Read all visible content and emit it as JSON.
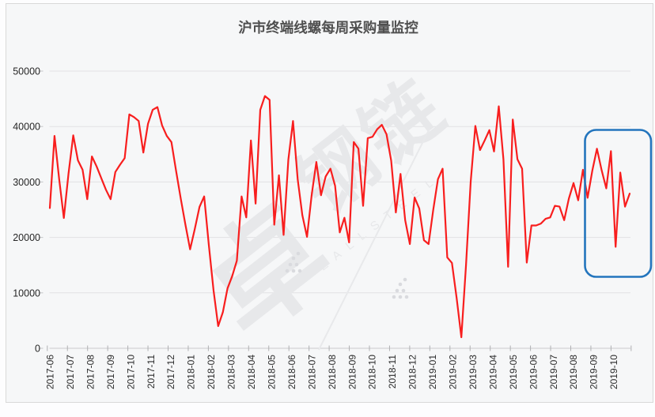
{
  "page": {
    "background": "#fdfdfe",
    "panel_background": "#f6f7f8",
    "panel_border": "#d9d9d9"
  },
  "chart_data": {
    "type": "line",
    "title": "沪市终端线螺每周采购量监控",
    "xlabel": "",
    "ylabel": "",
    "x_unit": "week",
    "start_month": "2017-06",
    "end_month": "2019-10",
    "categories_months": [
      "2017-06",
      "2017-07",
      "2017-08",
      "2017-09",
      "2017-10",
      "2017-11",
      "2017-12",
      "2018-01",
      "2018-02",
      "2018-03",
      "2018-04",
      "2018-05",
      "2018-06",
      "2018-07",
      "2018-08",
      "2018-09",
      "2018-10",
      "2018-11",
      "2018-12",
      "2019-01",
      "2019-02",
      "2019-03",
      "2019-04",
      "2019-05",
      "2019-06",
      "2019-07",
      "2019-08",
      "2019-09",
      "2019-10"
    ],
    "ylim": [
      0,
      50000
    ],
    "y_ticks": [
      0,
      10000,
      20000,
      30000,
      40000,
      50000
    ],
    "grid": "horizontal",
    "legend": "none",
    "series": [
      {
        "name": "每周采购量",
        "color": "#f81e1e",
        "values": [
          25300,
          38300,
          30500,
          23500,
          31500,
          38400,
          33900,
          32200,
          26900,
          34600,
          32800,
          30700,
          28600,
          26900,
          31800,
          33100,
          34300,
          42200,
          41700,
          41000,
          35300,
          40500,
          43000,
          43500,
          40200,
          38300,
          37200,
          32000,
          27000,
          22300,
          17850,
          21500,
          25500,
          27400,
          18600,
          10500,
          4000,
          6500,
          10800,
          13000,
          15800,
          27400,
          23600,
          37500,
          26100,
          43000,
          45500,
          44800,
          22300,
          31200,
          20450,
          34000,
          41000,
          30500,
          24000,
          20100,
          27650,
          33600,
          27600,
          31000,
          32400,
          29300,
          20900,
          23550,
          19100,
          37200,
          36000,
          25700,
          37900,
          38150,
          39500,
          40300,
          38600,
          33850,
          24500,
          31450,
          23100,
          18800,
          27200,
          25200,
          19500,
          18800,
          25000,
          30500,
          32400,
          16400,
          15400,
          9000,
          2000,
          15000,
          30000,
          40100,
          35750,
          37500,
          39350,
          35500,
          43650,
          34100,
          14700,
          41250,
          34100,
          32400,
          15450,
          22150,
          22150,
          22500,
          23350,
          23600,
          25700,
          25550,
          23100,
          27000,
          29800,
          26700,
          32200,
          27150,
          32000,
          36000,
          32150,
          28850,
          35550,
          18300,
          31700,
          25550,
          27900
        ]
      }
    ]
  },
  "highlight": {
    "name": "recent-period-highlight",
    "color": "#2375bd",
    "from_month": "2019-08",
    "to_month": "2019-10"
  },
  "watermark": {
    "logo_char": "卓",
    "text_cn": "钢链",
    "text_en": "Z A L L   S T E E L",
    "color": "#e7e8ea"
  }
}
